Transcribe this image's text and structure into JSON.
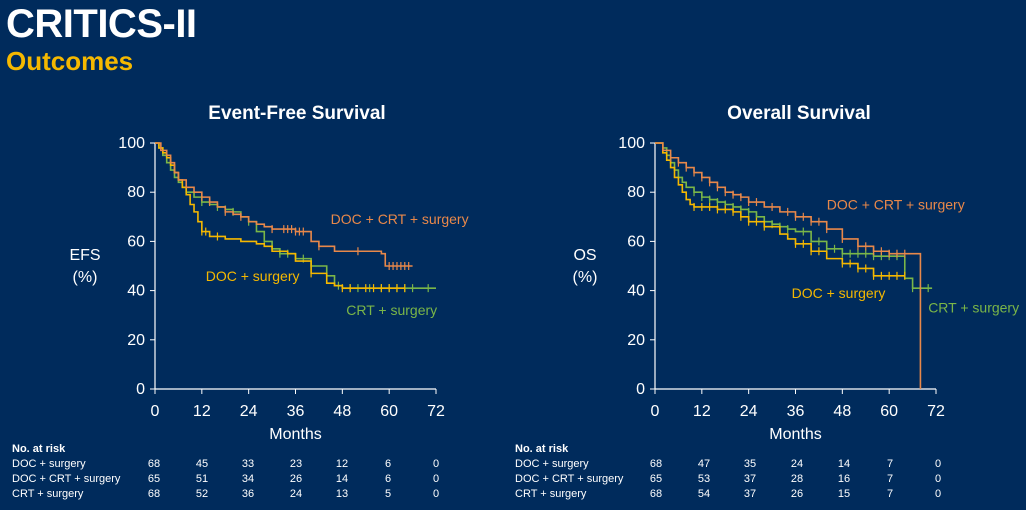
{
  "slide": {
    "title": "CRITICS-II",
    "subtitle": "Outcomes"
  },
  "colors": {
    "background": "#002b5c",
    "doc_surgery": "#f5b800",
    "doc_crt_surgery": "#e8884a",
    "crt_surgery": "#7ab648"
  },
  "chart_data": [
    {
      "type": "line",
      "title": "Event-Free Survival",
      "ylabel": [
        "EFS",
        "(%)"
      ],
      "xlabel": "Months",
      "xlim": [
        0,
        72
      ],
      "ylim": [
        0,
        100
      ],
      "x_ticks": [
        "0",
        "12",
        "24",
        "36",
        "48",
        "60",
        "72"
      ],
      "y_ticks": [
        "100",
        "80",
        "60",
        "40",
        "20",
        "0"
      ],
      "series": [
        {
          "name": "DOC + CRT + surgery",
          "color": "#e8884a",
          "x": [
            0,
            1.5,
            3,
            4,
            5,
            6,
            8,
            10,
            12,
            14,
            16,
            18,
            20,
            22,
            24,
            26,
            28,
            30,
            36,
            40,
            42,
            46,
            58,
            59,
            66
          ],
          "y": [
            100,
            97,
            95,
            92,
            88,
            85,
            82,
            80,
            78,
            76,
            74,
            72,
            71,
            70,
            68,
            67,
            66,
            65,
            64,
            60,
            58,
            56,
            55,
            50,
            50
          ],
          "censor_x": [
            12,
            14,
            18,
            22,
            30,
            33,
            34,
            35,
            36,
            37,
            38,
            42,
            52,
            60,
            61,
            62,
            63,
            64,
            65
          ]
        },
        {
          "name": "DOC + surgery",
          "color": "#f5b800",
          "x": [
            0,
            1,
            2,
            3,
            4,
            5,
            6,
            7,
            8,
            9,
            10,
            11,
            12,
            14,
            18,
            22,
            26,
            28,
            30,
            34,
            36,
            40,
            44,
            46,
            48,
            50,
            56,
            64
          ],
          "y": [
            100,
            98,
            96,
            94,
            91,
            88,
            85,
            82,
            79,
            75,
            72,
            68,
            64,
            62,
            61,
            60,
            59,
            58,
            56,
            55,
            52,
            47,
            43,
            42,
            41,
            41,
            41,
            41
          ],
          "censor_x": [
            12,
            13,
            16,
            40,
            48,
            50,
            54,
            56,
            58,
            60,
            62,
            64
          ]
        },
        {
          "name": "CRT + surgery",
          "color": "#7ab648",
          "x": [
            0,
            1,
            2,
            3,
            4,
            5,
            6,
            7,
            8,
            10,
            12,
            14,
            16,
            18,
            20,
            22,
            24,
            26,
            28,
            30,
            32,
            36,
            40,
            44,
            46,
            48,
            72
          ],
          "y": [
            100,
            98,
            95,
            92,
            89,
            86,
            84,
            82,
            80,
            78,
            76,
            75,
            74,
            73,
            72,
            70,
            68,
            64,
            60,
            57,
            55,
            53,
            50,
            46,
            42,
            41,
            41
          ],
          "censor_x": [
            12,
            16,
            18,
            20,
            24,
            28,
            32,
            34,
            38,
            40,
            47,
            50,
            52,
            55,
            58,
            60,
            62,
            64,
            66,
            70
          ]
        }
      ],
      "annotations": [
        {
          "text": "DOC + CRT + surgery",
          "series": "DOC + CRT + surgery",
          "x": 45,
          "y": 67
        },
        {
          "text": "DOC + surgery",
          "series": "DOC + surgery",
          "x": 13,
          "y": 44
        },
        {
          "text": "CRT + surgery",
          "series": "CRT + surgery",
          "x": 49,
          "y": 30
        }
      ],
      "risk_table": {
        "header": "No. at risk",
        "rows": [
          {
            "label": "DOC + surgery",
            "values": [
              "68",
              "45",
              "33",
              "23",
              "12",
              "6",
              "0"
            ]
          },
          {
            "label": "DOC + CRT + surgery",
            "values": [
              "65",
              "51",
              "34",
              "26",
              "14",
              "6",
              "0"
            ]
          },
          {
            "label": "CRT + surgery",
            "values": [
              "68",
              "52",
              "36",
              "24",
              "13",
              "5",
              "0"
            ]
          }
        ]
      }
    },
    {
      "type": "line",
      "title": "Overall Survival",
      "ylabel": [
        "OS",
        "(%)"
      ],
      "xlabel": "Months",
      "xlim": [
        0,
        72
      ],
      "ylim": [
        0,
        100
      ],
      "x_ticks": [
        "0",
        "12",
        "24",
        "36",
        "48",
        "60",
        "72"
      ],
      "y_ticks": [
        "100",
        "80",
        "60",
        "40",
        "20",
        "0"
      ],
      "series": [
        {
          "name": "DOC + CRT + surgery",
          "color": "#e8884a",
          "x": [
            0,
            2,
            4,
            6,
            8,
            10,
            12,
            14,
            16,
            18,
            20,
            22,
            24,
            28,
            32,
            36,
            40,
            44,
            48,
            52,
            56,
            60,
            66,
            68,
            68.01
          ],
          "y": [
            100,
            97,
            94,
            92,
            90,
            88,
            86,
            84,
            82,
            80,
            79,
            78,
            76,
            74,
            72,
            70,
            68,
            65,
            61,
            58,
            56,
            55,
            55,
            55,
            0
          ],
          "censor_x": [
            4,
            6,
            8,
            10,
            12,
            14,
            16,
            18,
            20,
            22,
            24,
            26,
            30,
            34,
            36,
            38,
            40,
            42,
            44,
            48,
            52,
            54,
            56,
            58,
            60,
            62,
            64
          ]
        },
        {
          "name": "DOC + surgery",
          "color": "#f5b800",
          "x": [
            0,
            2,
            3,
            4,
            5,
            6,
            7,
            8,
            9,
            10,
            12,
            16,
            20,
            22,
            24,
            28,
            32,
            34,
            36,
            40,
            44,
            48,
            52,
            56,
            64
          ],
          "y": [
            100,
            96,
            93,
            90,
            86,
            83,
            80,
            77,
            75,
            74,
            74,
            73,
            72,
            70,
            68,
            66,
            63,
            61,
            59,
            56,
            53,
            51,
            49,
            46,
            46
          ],
          "censor_x": [
            10,
            12,
            14,
            16,
            18,
            20,
            22,
            24,
            26,
            28,
            36,
            38,
            40,
            42,
            48,
            50,
            52,
            54,
            56,
            58,
            60,
            62,
            64
          ]
        },
        {
          "name": "CRT + surgery",
          "color": "#7ab648",
          "x": [
            0,
            2,
            3,
            4,
            5,
            6,
            7,
            8,
            10,
            12,
            14,
            16,
            18,
            20,
            22,
            24,
            26,
            28,
            30,
            32,
            34,
            36,
            40,
            44,
            48,
            56,
            64,
            66,
            71
          ],
          "y": [
            100,
            98,
            95,
            92,
            89,
            86,
            84,
            82,
            80,
            78,
            77,
            76,
            75,
            74,
            73,
            72,
            70,
            68,
            67,
            66,
            65,
            64,
            60,
            57,
            55,
            54,
            45,
            41,
            41
          ],
          "censor_x": [
            10,
            12,
            14,
            16,
            18,
            20,
            22,
            24,
            26,
            28,
            30,
            32,
            34,
            38,
            40,
            42,
            44,
            46,
            48,
            50,
            52,
            54,
            56,
            58,
            60,
            62,
            66,
            68,
            70
          ]
        }
      ],
      "annotations": [
        {
          "text": "DOC + CRT + surgery",
          "series": "DOC + CRT + surgery",
          "x": 44,
          "y": 73
        },
        {
          "text": "DOC + surgery",
          "series": "DOC + surgery",
          "x": 35,
          "y": 37
        },
        {
          "text": "CRT + surgery",
          "series": "CRT + surgery",
          "x": 70,
          "y": 31
        }
      ],
      "risk_table": {
        "header": "No. at risk",
        "rows": [
          {
            "label": "DOC + surgery",
            "values": [
              "68",
              "47",
              "35",
              "24",
              "14",
              "7",
              "0"
            ]
          },
          {
            "label": "DOC + CRT + surgery",
            "values": [
              "65",
              "53",
              "37",
              "28",
              "16",
              "7",
              "0"
            ]
          },
          {
            "label": "CRT + surgery",
            "values": [
              "68",
              "54",
              "37",
              "26",
              "15",
              "7",
              "0"
            ]
          }
        ]
      }
    }
  ]
}
